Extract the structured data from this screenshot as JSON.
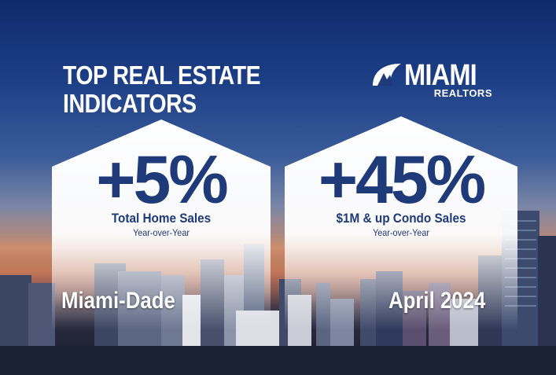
{
  "title": {
    "line1": "TOP REAL ESTATE",
    "line2": "INDICATORS"
  },
  "logo": {
    "name": "MIAMI",
    "sub": "REALTORS",
    "mark": "sailboat-logo-icon"
  },
  "left_card": {
    "value": "+5%",
    "label": "Total Home Sales",
    "sub": "Year-over-Year"
  },
  "right_card": {
    "value": "+45%",
    "label": "$1M & up Condo Sales",
    "sub": "Year-over-Year"
  },
  "region": "Miami-Dade",
  "period": "April 2024",
  "colors": {
    "navy": "#1e3a78",
    "sky_top": "#0e2a6b",
    "white": "#ffffff"
  }
}
